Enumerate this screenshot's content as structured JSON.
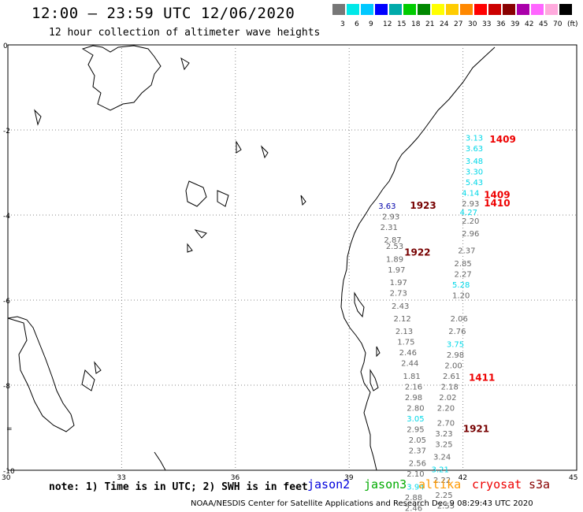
{
  "header": {
    "title": "12:00 – 23:59 UTC 12/06/2020",
    "subtitle": "12 hour collection of altimeter wave heights"
  },
  "scale": {
    "colors": [
      "#777777",
      "#00e8e8",
      "#00c8ff",
      "#0000ff",
      "#00aaaa",
      "#00cc00",
      "#008800",
      "#ffff00",
      "#ffcc00",
      "#ff8800",
      "#ff0000",
      "#cc0000",
      "#880000",
      "#aa00aa",
      "#ff66ff",
      "#ffaadd",
      "#000000"
    ],
    "labels": [
      "3",
      "6",
      "9",
      "12",
      "15",
      "18",
      "21",
      "24",
      "27",
      "30",
      "33",
      "36",
      "39",
      "42",
      "45",
      "70",
      "(ft)"
    ]
  },
  "axes": {
    "lon_labels": [
      "30",
      "33",
      "36",
      "39",
      "42",
      "45"
    ],
    "lat_labels": [
      "0",
      "-2",
      "-4",
      "-6",
      "-8",
      "-10"
    ],
    "lat_extra_label": "="
  },
  "measurements": [
    {
      "text": "3.13",
      "c": "cyan",
      "lon": 42.3,
      "lat": -2.25
    },
    {
      "text": "3.63",
      "c": "cyan",
      "lon": 42.3,
      "lat": -2.5
    },
    {
      "text": "3.48",
      "c": "cyan",
      "lon": 42.3,
      "lat": -2.8
    },
    {
      "text": "3.30",
      "c": "cyan",
      "lon": 42.3,
      "lat": -3.05
    },
    {
      "text": "5.43",
      "c": "cyan",
      "lon": 42.3,
      "lat": -3.3
    },
    {
      "text": "4.14",
      "c": "cyan",
      "lon": 42.2,
      "lat": -3.55
    },
    {
      "text": "2.93",
      "c": "gray",
      "lon": 42.2,
      "lat": -3.8
    },
    {
      "text": "3.63",
      "c": "navy",
      "lon": 40.0,
      "lat": -3.85
    },
    {
      "text": "4.27",
      "c": "cyan",
      "lon": 42.15,
      "lat": -4.0
    },
    {
      "text": "2.93",
      "c": "gray",
      "lon": 40.1,
      "lat": -4.1
    },
    {
      "text": "2.20",
      "c": "gray",
      "lon": 42.2,
      "lat": -4.2
    },
    {
      "text": "2.31",
      "c": "gray",
      "lon": 40.05,
      "lat": -4.35
    },
    {
      "text": "2.96",
      "c": "gray",
      "lon": 42.2,
      "lat": -4.5
    },
    {
      "text": "2.87",
      "c": "gray",
      "lon": 40.15,
      "lat": -4.65
    },
    {
      "text": "2.53",
      "c": "gray",
      "lon": 40.2,
      "lat": -4.8
    },
    {
      "text": "2.37",
      "c": "gray",
      "lon": 42.1,
      "lat": -4.9
    },
    {
      "text": "1.89",
      "c": "gray",
      "lon": 40.2,
      "lat": -5.1
    },
    {
      "text": "2.85",
      "c": "gray",
      "lon": 42.0,
      "lat": -5.2
    },
    {
      "text": "1.97",
      "c": "gray",
      "lon": 40.25,
      "lat": -5.35
    },
    {
      "text": "2.27",
      "c": "gray",
      "lon": 42.0,
      "lat": -5.45
    },
    {
      "text": "1.97",
      "c": "gray",
      "lon": 40.3,
      "lat": -5.65
    },
    {
      "text": "5.28",
      "c": "cyan",
      "lon": 41.95,
      "lat": -5.7
    },
    {
      "text": "2.73",
      "c": "gray",
      "lon": 40.3,
      "lat": -5.9
    },
    {
      "text": "1.20",
      "c": "gray",
      "lon": 41.95,
      "lat": -5.95
    },
    {
      "text": "2.43",
      "c": "gray",
      "lon": 40.35,
      "lat": -6.2
    },
    {
      "text": "2.12",
      "c": "gray",
      "lon": 40.4,
      "lat": -6.5
    },
    {
      "text": "2.06",
      "c": "gray",
      "lon": 41.9,
      "lat": -6.5
    },
    {
      "text": "2.13",
      "c": "gray",
      "lon": 40.45,
      "lat": -6.8
    },
    {
      "text": "2.76",
      "c": "gray",
      "lon": 41.85,
      "lat": -6.8
    },
    {
      "text": "1.75",
      "c": "gray",
      "lon": 40.5,
      "lat": -7.05
    },
    {
      "text": "3.75",
      "c": "cyan",
      "lon": 41.8,
      "lat": -7.1
    },
    {
      "text": "2.46",
      "c": "gray",
      "lon": 40.55,
      "lat": -7.3
    },
    {
      "text": "2.98",
      "c": "gray",
      "lon": 41.8,
      "lat": -7.35
    },
    {
      "text": "2.44",
      "c": "gray",
      "lon": 40.6,
      "lat": -7.55
    },
    {
      "text": "2.00",
      "c": "gray",
      "lon": 41.75,
      "lat": -7.6
    },
    {
      "text": "1.81",
      "c": "gray",
      "lon": 40.65,
      "lat": -7.85
    },
    {
      "text": "2.61",
      "c": "gray",
      "lon": 41.7,
      "lat": -7.85
    },
    {
      "text": "2.16",
      "c": "gray",
      "lon": 40.7,
      "lat": -8.1
    },
    {
      "text": "2.18",
      "c": "gray",
      "lon": 41.65,
      "lat": -8.1
    },
    {
      "text": "2.98",
      "c": "gray",
      "lon": 40.7,
      "lat": -8.35
    },
    {
      "text": "2.02",
      "c": "gray",
      "lon": 41.6,
      "lat": -8.35
    },
    {
      "text": "2.80",
      "c": "gray",
      "lon": 40.75,
      "lat": -8.6
    },
    {
      "text": "2.20",
      "c": "gray",
      "lon": 41.55,
      "lat": -8.6
    },
    {
      "text": "3.05",
      "c": "cyan",
      "lon": 40.75,
      "lat": -8.85
    },
    {
      "text": "2.70",
      "c": "gray",
      "lon": 41.55,
      "lat": -8.95
    },
    {
      "text": "2.95",
      "c": "gray",
      "lon": 40.75,
      "lat": -9.1
    },
    {
      "text": "3.23",
      "c": "gray",
      "lon": 41.5,
      "lat": -9.2
    },
    {
      "text": "2.05",
      "c": "gray",
      "lon": 40.8,
      "lat": -9.35
    },
    {
      "text": "3.25",
      "c": "gray",
      "lon": 41.5,
      "lat": -9.45
    },
    {
      "text": "2.37",
      "c": "gray",
      "lon": 40.8,
      "lat": -9.6
    },
    {
      "text": "3.24",
      "c": "gray",
      "lon": 41.45,
      "lat": -9.75
    },
    {
      "text": "2.56",
      "c": "gray",
      "lon": 40.8,
      "lat": -9.9
    },
    {
      "text": "3.21",
      "c": "cyan",
      "lon": 41.4,
      "lat": -10.05
    },
    {
      "text": "2.10",
      "c": "gray",
      "lon": 40.75,
      "lat": -10.15
    },
    {
      "text": "2.22",
      "c": "gray",
      "lon": 41.45,
      "lat": -10.3
    },
    {
      "text": "3.94",
      "c": "cyan",
      "lon": 40.75,
      "lat": -10.45
    },
    {
      "text": "2.88",
      "c": "gray",
      "lon": 40.7,
      "lat": -10.7
    },
    {
      "text": "2.25",
      "c": "gray",
      "lon": 41.5,
      "lat": -10.65
    },
    {
      "text": "2.46",
      "c": "gray",
      "lon": 40.7,
      "lat": -10.95
    },
    {
      "text": "2.55",
      "c": "gray",
      "lon": 41.55,
      "lat": -10.9
    }
  ],
  "pass_times": [
    {
      "text": "1409",
      "c": "red",
      "lon": 43.05,
      "lat": -2.3
    },
    {
      "text": "1409",
      "c": "red",
      "lon": 42.9,
      "lat": -3.6
    },
    {
      "text": "1410",
      "c": "red",
      "lon": 42.9,
      "lat": -3.8
    },
    {
      "text": "1923",
      "c": "darkred",
      "lon": 40.95,
      "lat": -3.85
    },
    {
      "text": "1922",
      "c": "darkred",
      "lon": 40.8,
      "lat": -4.95
    },
    {
      "text": "1411",
      "c": "red",
      "lon": 42.5,
      "lat": -7.9
    },
    {
      "text": "1921",
      "c": "darkred",
      "lon": 42.35,
      "lat": -9.1
    }
  ],
  "colors": {
    "gray": "#666666",
    "cyan": "#00d8e8",
    "navy": "#0000aa",
    "red": "#ee0000",
    "darkred": "#770000",
    "grid": "#888888"
  },
  "note": "note: 1) Time is in UTC; 2) SWH is in feet",
  "legend": [
    {
      "text": "jason2",
      "color": "#0000dd"
    },
    {
      "text": "jason3",
      "color": "#00aa00"
    },
    {
      "text": "altika",
      "color": "#ff9900"
    },
    {
      "text": "cryosat",
      "color": "#ee0000"
    },
    {
      "text": "s3a",
      "color": "#880000"
    }
  ],
  "footer": "NOAA/NESDIS Center for Satellite Applications and Research   Dec  9 08:29:43 UTC 2020"
}
